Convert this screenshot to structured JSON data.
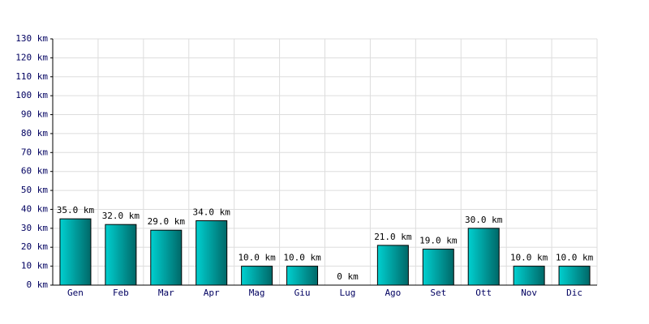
{
  "chart_data": {
    "type": "bar",
    "categories": [
      "Gen",
      "Feb",
      "Mar",
      "Apr",
      "Mag",
      "Giu",
      "Lug",
      "Ago",
      "Set",
      "Ott",
      "Nov",
      "Dic"
    ],
    "values": [
      35,
      32,
      29,
      34,
      10,
      10,
      0,
      21,
      19,
      30,
      10,
      10
    ],
    "value_labels": [
      "35.0 km",
      "32.0 km",
      "29.0 km",
      "34.0 km",
      "10.0 km",
      "10.0 km",
      "0 km",
      "21.0 km",
      "19.0 km",
      "30.0 km",
      "10.0 km",
      "10.0 km"
    ],
    "color": "#00d0d0",
    "ylim": [
      0,
      130
    ],
    "yticks": [
      {
        "value": 0,
        "label": "0 km"
      },
      {
        "value": 10,
        "label": "10 km"
      },
      {
        "value": 20,
        "label": "20 km"
      },
      {
        "value": 30,
        "label": "30 km"
      },
      {
        "value": 40,
        "label": "40 km"
      },
      {
        "value": 50,
        "label": "50 km"
      },
      {
        "value": 60,
        "label": "60 km"
      },
      {
        "value": 70,
        "label": "70 km"
      },
      {
        "value": 80,
        "label": "80 km"
      },
      {
        "value": 90,
        "label": "90 km"
      },
      {
        "value": 100,
        "label": "100 km"
      },
      {
        "value": 110,
        "label": "110 km"
      },
      {
        "value": 120,
        "label": "120 km"
      },
      {
        "value": 130,
        "label": "130 km"
      }
    ],
    "grid": true
  }
}
